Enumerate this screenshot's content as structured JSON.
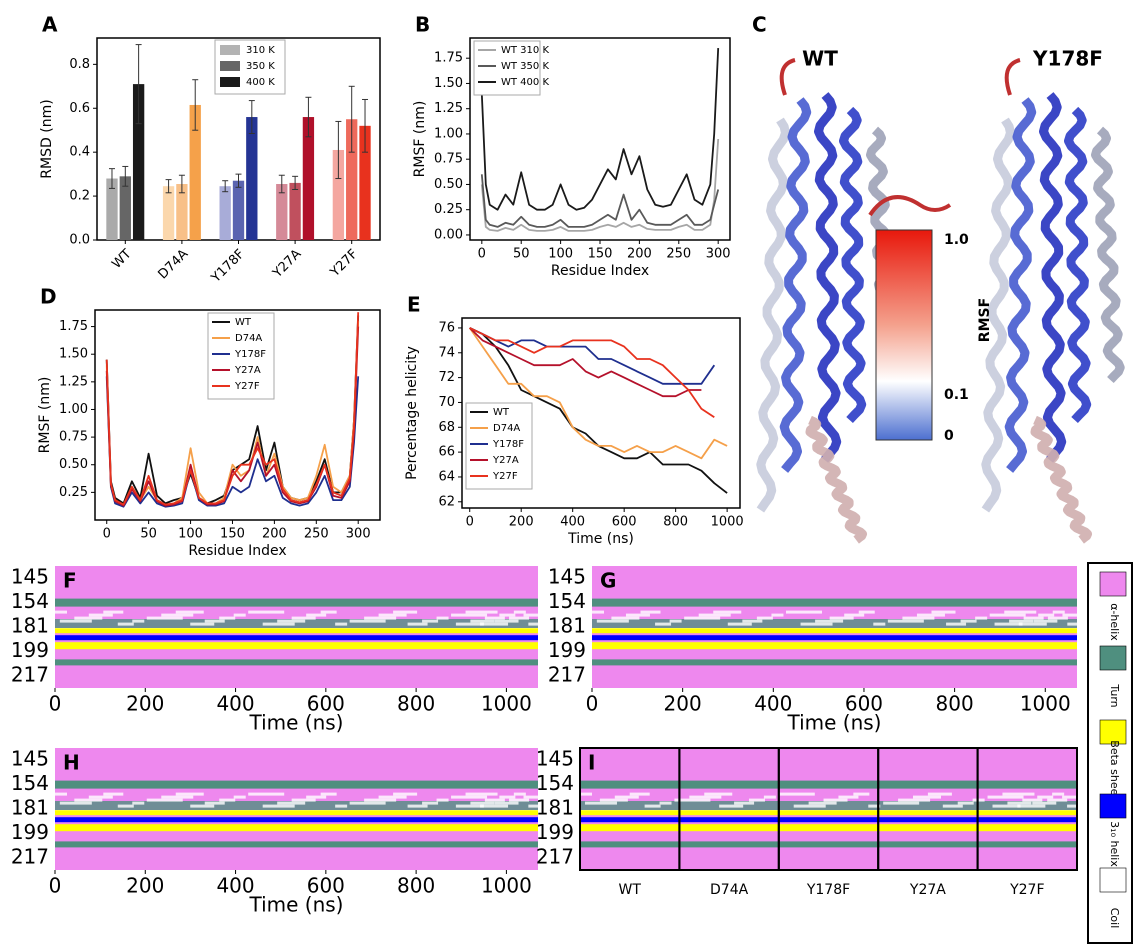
{
  "chart_data": [
    {
      "type": "bar",
      "panel": "A",
      "ylabel": "RMSD (nm)",
      "categories": [
        "WT",
        "D74A",
        "Y178F",
        "Y27A",
        "Y27F"
      ],
      "series": [
        {
          "name": "310 K",
          "color": "#b3b3b3",
          "bar_colors": [
            "#aaaaaa",
            "#fbd7ac",
            "#a8acd8",
            "#d58a98",
            "#f4a7a0"
          ],
          "values": [
            0.28,
            0.245,
            0.245,
            0.255,
            0.41
          ],
          "errors": [
            0.045,
            0.03,
            0.025,
            0.04,
            0.13
          ]
        },
        {
          "name": "350 K",
          "color": "#666666",
          "bar_colors": [
            "#666666",
            "#f8c088",
            "#5a64b0",
            "#c0505e",
            "#ee6a5c"
          ],
          "values": [
            0.29,
            0.255,
            0.27,
            0.26,
            0.55
          ],
          "errors": [
            0.045,
            0.04,
            0.03,
            0.03,
            0.15
          ]
        },
        {
          "name": "400 K",
          "color": "#1a1a1a",
          "bar_colors": [
            "#1a1a1a",
            "#f5a14a",
            "#243494",
            "#b0102a",
            "#e8321e"
          ],
          "values": [
            0.71,
            0.615,
            0.56,
            0.56,
            0.52
          ],
          "errors": [
            0.18,
            0.115,
            0.075,
            0.09,
            0.12
          ]
        }
      ],
      "ylim": [
        0,
        0.92
      ],
      "yticks": [
        {
          "value": 0,
          "label": "0.0"
        },
        0.2,
        0.4,
        0.6,
        0.8
      ]
    },
    {
      "type": "line",
      "panel": "B",
      "ylabel": "RMSF (nm)",
      "xlabel": "Residue Index",
      "x": [
        0,
        5,
        10,
        20,
        30,
        40,
        50,
        60,
        70,
        80,
        90,
        100,
        110,
        120,
        130,
        140,
        150,
        160,
        170,
        180,
        190,
        200,
        210,
        220,
        230,
        240,
        250,
        260,
        270,
        280,
        290,
        295,
        300
      ],
      "series": [
        {
          "name": "WT 310 K",
          "color": "#a6a6a6",
          "values": [
            0.5,
            0.08,
            0.05,
            0.04,
            0.07,
            0.05,
            0.1,
            0.05,
            0.04,
            0.04,
            0.05,
            0.08,
            0.04,
            0.04,
            0.04,
            0.05,
            0.08,
            0.1,
            0.08,
            0.12,
            0.08,
            0.1,
            0.06,
            0.05,
            0.05,
            0.05,
            0.08,
            0.1,
            0.05,
            0.05,
            0.1,
            0.35,
            0.95
          ]
        },
        {
          "name": "WT 350 K",
          "color": "#595959",
          "values": [
            0.6,
            0.15,
            0.1,
            0.08,
            0.12,
            0.1,
            0.18,
            0.1,
            0.08,
            0.08,
            0.1,
            0.15,
            0.08,
            0.08,
            0.08,
            0.1,
            0.15,
            0.2,
            0.15,
            0.4,
            0.15,
            0.25,
            0.12,
            0.1,
            0.1,
            0.1,
            0.15,
            0.2,
            0.1,
            0.1,
            0.15,
            0.3,
            0.45
          ]
        },
        {
          "name": "WT 400 K",
          "color": "#1a1a1a",
          "values": [
            1.4,
            0.5,
            0.3,
            0.25,
            0.4,
            0.3,
            0.62,
            0.3,
            0.25,
            0.25,
            0.3,
            0.5,
            0.3,
            0.25,
            0.27,
            0.35,
            0.5,
            0.65,
            0.55,
            0.85,
            0.6,
            0.78,
            0.45,
            0.3,
            0.28,
            0.3,
            0.45,
            0.6,
            0.35,
            0.3,
            0.5,
            1.0,
            1.85
          ]
        }
      ],
      "xlim": [
        -15,
        315
      ],
      "xticks": [
        0,
        50,
        100,
        150,
        200,
        250,
        300
      ],
      "ylim": [
        -0.05,
        1.95
      ],
      "yticks": [
        {
          "value": 0,
          "label": "0.00"
        },
        0.25,
        {
          "value": 0.5,
          "label": "0.50"
        },
        0.75,
        {
          "value": 1,
          "label": "1.00"
        },
        1.25,
        {
          "value": 1.5,
          "label": "1.50"
        },
        1.75
      ]
    },
    {
      "type": "line",
      "panel": "D",
      "ylabel": "RMSF (nm)",
      "xlabel": "Residue Index",
      "x": [
        0,
        5,
        10,
        20,
        30,
        40,
        50,
        60,
        70,
        80,
        90,
        100,
        110,
        120,
        130,
        140,
        150,
        160,
        170,
        180,
        190,
        200,
        210,
        220,
        230,
        240,
        250,
        260,
        270,
        280,
        290,
        295,
        300
      ],
      "series": [
        {
          "name": "WT",
          "color": "#111111",
          "values": [
            1.45,
            0.35,
            0.2,
            0.15,
            0.35,
            0.2,
            0.6,
            0.22,
            0.15,
            0.18,
            0.2,
            0.42,
            0.2,
            0.15,
            0.18,
            0.22,
            0.45,
            0.5,
            0.55,
            0.85,
            0.45,
            0.7,
            0.3,
            0.2,
            0.18,
            0.2,
            0.35,
            0.55,
            0.25,
            0.25,
            0.4,
            0.9,
            1.85
          ]
        },
        {
          "name": "D74A",
          "color": "#f5a04a",
          "values": [
            1.4,
            0.3,
            0.18,
            0.13,
            0.3,
            0.18,
            0.3,
            0.18,
            0.13,
            0.15,
            0.2,
            0.65,
            0.25,
            0.15,
            0.15,
            0.2,
            0.5,
            0.4,
            0.45,
            0.75,
            0.4,
            0.6,
            0.3,
            0.2,
            0.18,
            0.2,
            0.4,
            0.68,
            0.3,
            0.25,
            0.4,
            0.9,
            1.8
          ]
        },
        {
          "name": "Y178F",
          "color": "#1f2f8f",
          "values": [
            1.3,
            0.3,
            0.15,
            0.12,
            0.25,
            0.15,
            0.25,
            0.15,
            0.12,
            0.13,
            0.15,
            0.45,
            0.18,
            0.13,
            0.13,
            0.15,
            0.3,
            0.25,
            0.3,
            0.55,
            0.35,
            0.4,
            0.2,
            0.15,
            0.13,
            0.15,
            0.25,
            0.4,
            0.18,
            0.18,
            0.3,
            0.7,
            1.3
          ]
        },
        {
          "name": "Y27A",
          "color": "#b5112b",
          "values": [
            1.35,
            0.32,
            0.17,
            0.13,
            0.28,
            0.17,
            0.35,
            0.17,
            0.13,
            0.14,
            0.17,
            0.5,
            0.2,
            0.14,
            0.14,
            0.17,
            0.45,
            0.35,
            0.45,
            0.7,
            0.4,
            0.5,
            0.25,
            0.17,
            0.15,
            0.17,
            0.3,
            0.5,
            0.22,
            0.2,
            0.35,
            0.8,
            1.75
          ]
        },
        {
          "name": "Y27F",
          "color": "#e8321e",
          "values": [
            1.45,
            0.33,
            0.18,
            0.14,
            0.3,
            0.18,
            0.4,
            0.18,
            0.14,
            0.15,
            0.18,
            0.45,
            0.2,
            0.15,
            0.15,
            0.18,
            0.4,
            0.5,
            0.5,
            0.65,
            0.5,
            0.55,
            0.28,
            0.18,
            0.16,
            0.18,
            0.32,
            0.5,
            0.25,
            0.22,
            0.38,
            0.85,
            1.88
          ]
        }
      ],
      "xlim": [
        -14,
        326
      ],
      "xticks": [
        0,
        50,
        100,
        150,
        200,
        250,
        300
      ],
      "ylim": [
        0,
        1.9
      ],
      "yticks": [
        0.25,
        {
          "value": 0.5,
          "label": "0.50"
        },
        0.75,
        {
          "value": 1,
          "label": "1.00"
        },
        1.25,
        {
          "value": 1.5,
          "label": "1.50"
        },
        1.75
      ]
    },
    {
      "type": "line",
      "panel": "E",
      "ylabel": "Percentage helicity",
      "xlabel": "Time (ns)",
      "x": [
        0,
        50,
        100,
        150,
        200,
        250,
        300,
        350,
        400,
        450,
        500,
        550,
        600,
        650,
        700,
        750,
        800,
        850,
        900,
        950,
        1000
      ],
      "series": [
        {
          "name": "WT",
          "color": "#111111",
          "values": [
            76,
            75.5,
            74.5,
            73,
            71,
            70.5,
            70,
            69.5,
            68,
            67.5,
            66.5,
            66,
            65.5,
            65.5,
            66,
            65,
            65,
            65,
            64.5,
            63.5,
            62.7
          ]
        },
        {
          "name": "D74A",
          "color": "#f5a04a",
          "values": [
            76,
            74.5,
            73,
            71.5,
            71.5,
            70.5,
            70.5,
            70,
            68,
            67,
            66.5,
            66.5,
            66,
            66.5,
            66,
            66,
            66.5,
            66,
            65.5,
            67,
            66.5
          ]
        },
        {
          "name": "Y178F",
          "color": "#1f2f8f",
          "values": [
            76,
            75.5,
            75,
            74.5,
            75,
            75,
            74.5,
            74.5,
            74.5,
            74.5,
            73.5,
            73.5,
            73,
            72.5,
            72,
            71.5,
            71.5,
            71.5,
            71.5,
            73,
            null
          ]
        },
        {
          "name": "Y27A",
          "color": "#b5112b",
          "values": [
            76,
            75,
            74.5,
            74,
            73.5,
            73,
            73,
            73,
            73.5,
            72.5,
            72,
            72.5,
            72,
            71.5,
            71,
            70.5,
            70.5,
            71,
            71,
            null,
            null
          ]
        },
        {
          "name": "Y27F",
          "color": "#e8321e",
          "values": [
            76,
            75.5,
            75,
            75,
            74.5,
            74,
            74.5,
            74.5,
            75,
            75,
            75,
            75,
            74.5,
            73.5,
            73.5,
            73,
            72,
            71,
            69.5,
            68.8,
            null
          ]
        }
      ],
      "xlim": [
        -30,
        1050
      ],
      "xticks": [
        0,
        200,
        400,
        600,
        800,
        1000
      ],
      "ylim": [
        61.5,
        76.8
      ],
      "yticks": [
        62,
        64,
        66,
        68,
        70,
        72,
        74,
        76
      ]
    },
    {
      "type": "timeline",
      "panel": "F",
      "y_labels": [
        145,
        154,
        181,
        199,
        217
      ],
      "xlim": [
        0,
        1070
      ],
      "xticks": [
        0,
        200,
        400,
        600,
        800,
        1000
      ],
      "xlabel": "Time (ns)"
    },
    {
      "type": "timeline",
      "panel": "G",
      "y_labels": [
        145,
        154,
        181,
        199,
        217
      ],
      "xlim": [
        0,
        1070
      ],
      "xticks": [
        0,
        200,
        400,
        600,
        800,
        1000
      ],
      "xlabel": "Time (ns)"
    },
    {
      "type": "timeline",
      "panel": "H",
      "y_labels": [
        145,
        154,
        181,
        199,
        217
      ],
      "xlim": [
        0,
        1070
      ],
      "xticks": [
        0,
        200,
        400,
        600,
        800,
        1000
      ],
      "xlabel": "Time (ns)"
    },
    {
      "type": "timeline",
      "panel": "I",
      "y_labels": [
        145,
        154,
        181,
        199,
        217
      ],
      "categories": [
        "WT",
        "D74A",
        "Y178F",
        "Y27A",
        "Y27F"
      ]
    }
  ],
  "structure": {
    "panel": "C",
    "labels": [
      "WT",
      "Y178F"
    ],
    "colorbar_title": "RMSF",
    "colorbar_ticks": [
      "1.0",
      "0.1",
      "0"
    ]
  },
  "ss_legend": [
    {
      "label": "α-helix",
      "color": "#ee88ee"
    },
    {
      "label": "Turn",
      "color": "#4f8f7f"
    },
    {
      "label": "Beta sheet",
      "color": "#ffff00"
    },
    {
      "label": "3₁₀ helix",
      "color": "#0000ff"
    },
    {
      "label": "Coil",
      "color": "#ffffff"
    }
  ]
}
